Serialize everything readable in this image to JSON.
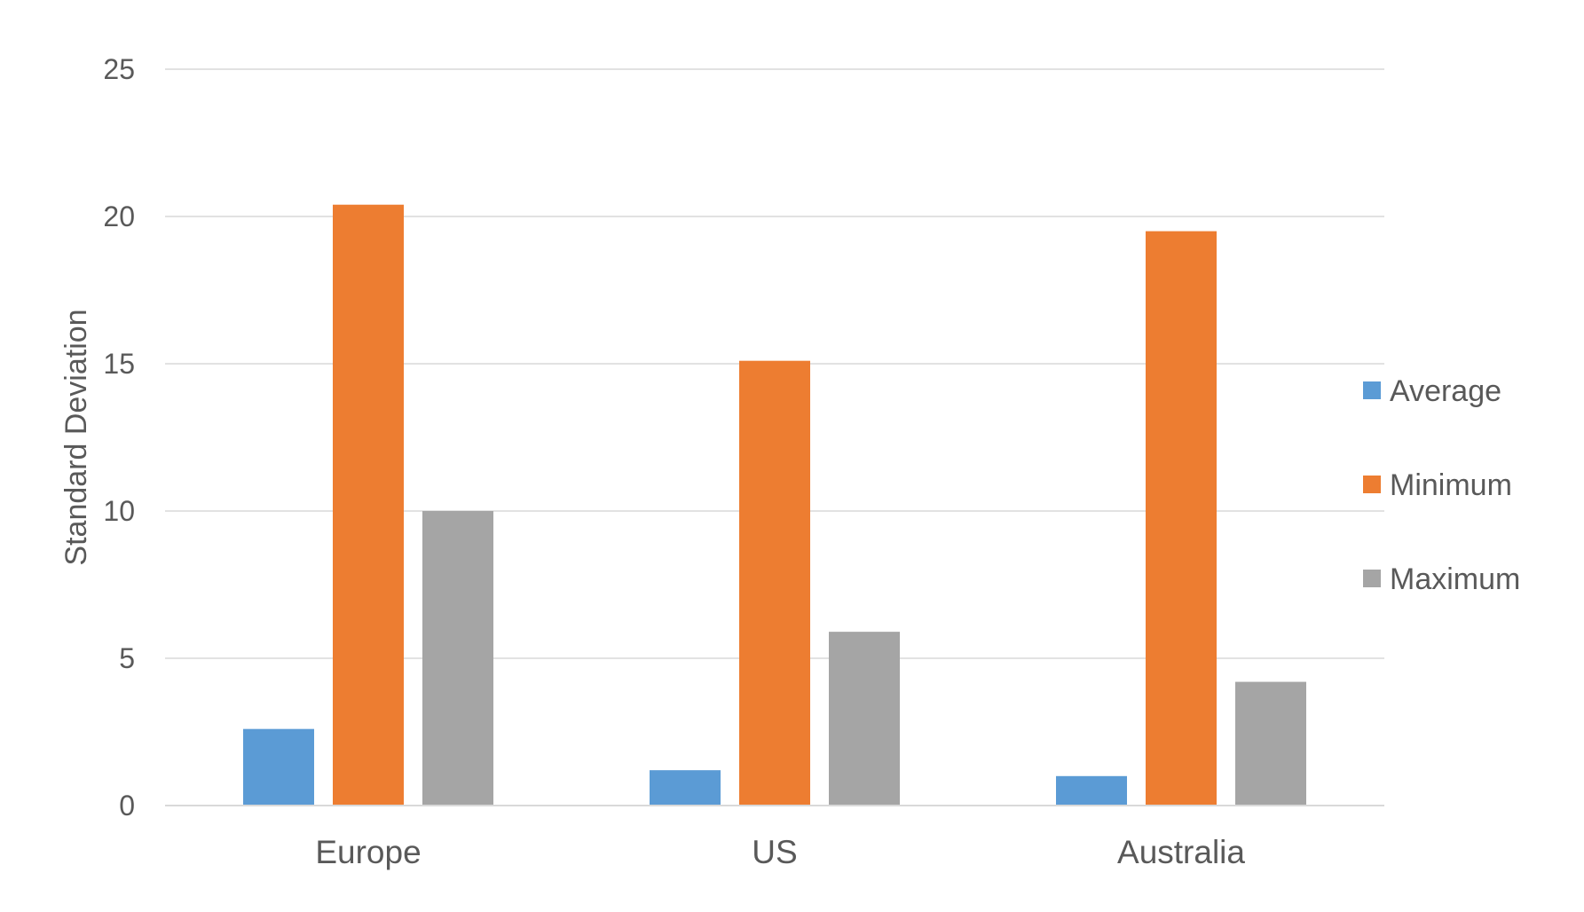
{
  "chart_data": {
    "type": "bar",
    "title": "",
    "xlabel": "",
    "ylabel": "Standard Deviation",
    "ylim": [
      0,
      25
    ],
    "yticks": [
      0,
      5,
      10,
      15,
      20,
      25
    ],
    "grid": true,
    "legend_position": "right",
    "categories": [
      "Europe",
      "US",
      "Australia"
    ],
    "series": [
      {
        "name": "Average",
        "color": "#5B9BD5",
        "values": [
          2.6,
          1.2,
          1.0
        ]
      },
      {
        "name": "Minimum",
        "color": "#ED7D31",
        "values": [
          20.4,
          15.1,
          19.5
        ]
      },
      {
        "name": "Maximum",
        "color": "#A5A5A5",
        "values": [
          10.0,
          5.9,
          4.2
        ]
      }
    ]
  }
}
